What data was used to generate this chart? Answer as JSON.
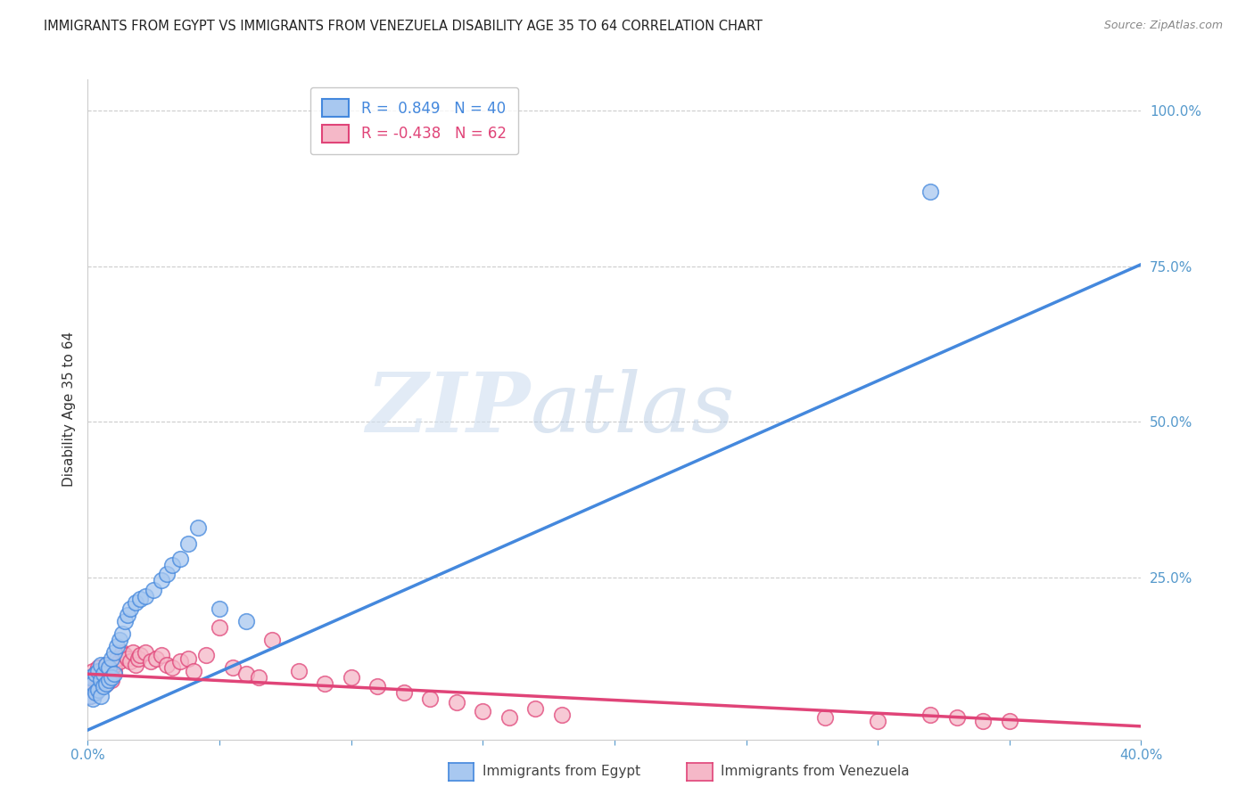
{
  "title": "IMMIGRANTS FROM EGYPT VS IMMIGRANTS FROM VENEZUELA DISABILITY AGE 35 TO 64 CORRELATION CHART",
  "source": "Source: ZipAtlas.com",
  "ylabel": "Disability Age 35 to 64",
  "xlim": [
    0.0,
    0.4
  ],
  "ylim": [
    -0.01,
    1.05
  ],
  "yticks_right": [
    0.0,
    0.25,
    0.5,
    0.75,
    1.0
  ],
  "yticklabels_right": [
    "",
    "25.0%",
    "50.0%",
    "75.0%",
    "100.0%"
  ],
  "color_egypt": "#a8c8f0",
  "color_venezuela": "#f5b8c8",
  "trendline_color_egypt": "#4488dd",
  "trendline_color_venezuela": "#e04478",
  "R_egypt": 0.849,
  "N_egypt": 40,
  "R_venezuela": -0.438,
  "N_venezuela": 62,
  "watermark_zip": "ZIP",
  "watermark_atlas": "atlas",
  "background_color": "#ffffff",
  "grid_color": "#cccccc",
  "axis_color": "#5599cc",
  "title_fontsize": 10.5,
  "trendline_intercept_egypt": 0.005,
  "trendline_slope_egypt": 1.87,
  "trendline_intercept_venezuela": 0.095,
  "trendline_slope_venezuela": -0.21,
  "egypt_points_x": [
    0.001,
    0.001,
    0.002,
    0.002,
    0.003,
    0.003,
    0.004,
    0.004,
    0.005,
    0.005,
    0.005,
    0.006,
    0.006,
    0.007,
    0.007,
    0.008,
    0.008,
    0.009,
    0.009,
    0.01,
    0.01,
    0.011,
    0.012,
    0.013,
    0.014,
    0.015,
    0.016,
    0.018,
    0.02,
    0.022,
    0.025,
    0.028,
    0.03,
    0.032,
    0.035,
    0.038,
    0.042,
    0.05,
    0.06,
    0.32
  ],
  "egypt_points_y": [
    0.06,
    0.09,
    0.055,
    0.08,
    0.065,
    0.095,
    0.07,
    0.1,
    0.06,
    0.085,
    0.11,
    0.075,
    0.095,
    0.08,
    0.11,
    0.085,
    0.105,
    0.09,
    0.12,
    0.095,
    0.13,
    0.14,
    0.15,
    0.16,
    0.18,
    0.19,
    0.2,
    0.21,
    0.215,
    0.22,
    0.23,
    0.245,
    0.255,
    0.27,
    0.28,
    0.305,
    0.33,
    0.2,
    0.18,
    0.87
  ],
  "venezuela_points_x": [
    0.001,
    0.001,
    0.002,
    0.002,
    0.003,
    0.003,
    0.004,
    0.004,
    0.005,
    0.005,
    0.006,
    0.006,
    0.007,
    0.007,
    0.008,
    0.008,
    0.009,
    0.009,
    0.01,
    0.01,
    0.011,
    0.012,
    0.013,
    0.014,
    0.015,
    0.016,
    0.017,
    0.018,
    0.019,
    0.02,
    0.022,
    0.024,
    0.026,
    0.028,
    0.03,
    0.032,
    0.035,
    0.038,
    0.04,
    0.045,
    0.05,
    0.055,
    0.06,
    0.065,
    0.07,
    0.08,
    0.09,
    0.1,
    0.11,
    0.12,
    0.13,
    0.14,
    0.15,
    0.16,
    0.17,
    0.18,
    0.28,
    0.3,
    0.32,
    0.33,
    0.34,
    0.35
  ],
  "venezuela_points_y": [
    0.06,
    0.09,
    0.07,
    0.1,
    0.065,
    0.095,
    0.075,
    0.105,
    0.08,
    0.1,
    0.085,
    0.095,
    0.08,
    0.11,
    0.09,
    0.105,
    0.085,
    0.095,
    0.1,
    0.11,
    0.12,
    0.115,
    0.13,
    0.125,
    0.12,
    0.115,
    0.13,
    0.11,
    0.12,
    0.125,
    0.13,
    0.115,
    0.12,
    0.125,
    0.11,
    0.105,
    0.115,
    0.12,
    0.1,
    0.125,
    0.17,
    0.105,
    0.095,
    0.09,
    0.15,
    0.1,
    0.08,
    0.09,
    0.075,
    0.065,
    0.055,
    0.05,
    0.035,
    0.025,
    0.04,
    0.03,
    0.025,
    0.02,
    0.03,
    0.025,
    0.02,
    0.02
  ]
}
